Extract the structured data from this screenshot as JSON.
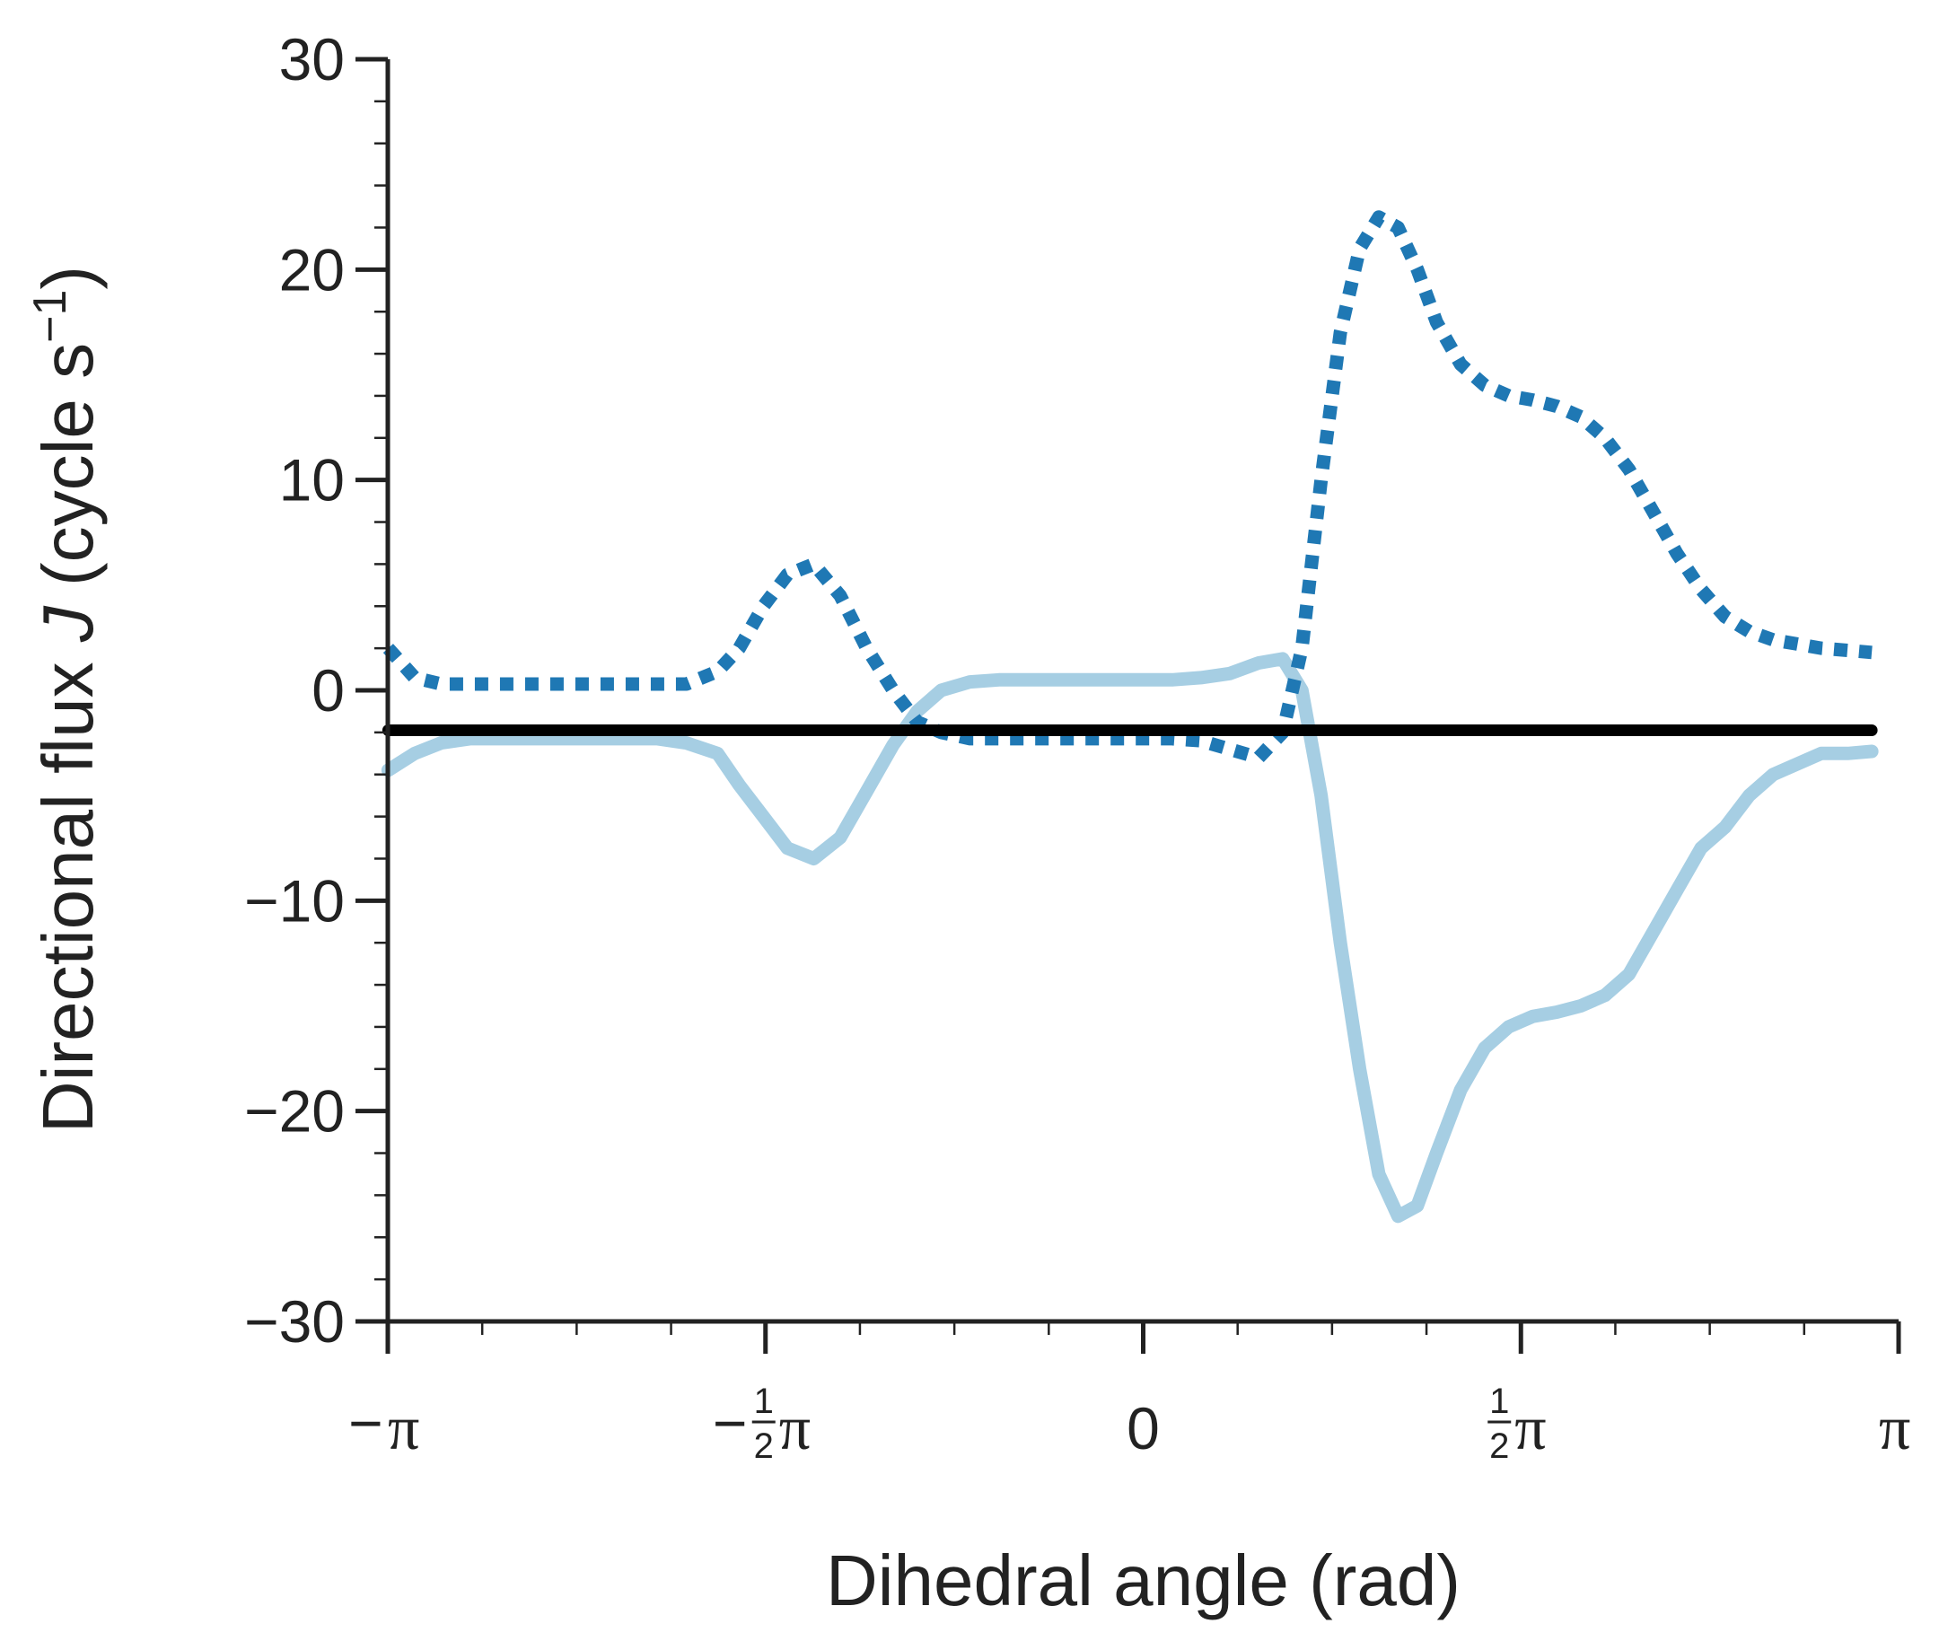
{
  "chart_data": {
    "type": "line",
    "xlabel": "Dihedral angle (rad)",
    "ylabel_parts": {
      "prefix": "Directional flux ",
      "symbol": "J",
      "middle": " (cycle s",
      "superscript": "−1",
      "suffix": ")"
    },
    "xlim": [
      -3.1416,
      3.1416
    ],
    "ylim": [
      -30,
      30
    ],
    "grid": false,
    "x_ticks": [
      {
        "value": -3.1416,
        "sign": "−",
        "frac_num": "",
        "frac_den": "",
        "symbol": "π"
      },
      {
        "value": -1.5708,
        "sign": "−",
        "frac_num": "1",
        "frac_den": "2",
        "symbol": "π"
      },
      {
        "value": 0,
        "sign": "",
        "frac_num": "",
        "frac_den": "",
        "symbol": "0"
      },
      {
        "value": 1.5708,
        "sign": "",
        "frac_num": "1",
        "frac_den": "2",
        "symbol": "π"
      },
      {
        "value": 3.1416,
        "sign": "",
        "frac_num": "",
        "frac_den": "",
        "symbol": "π"
      }
    ],
    "x_minor_step": 0.3927,
    "y_ticks": [
      {
        "value": 30,
        "label": "30"
      },
      {
        "value": 20,
        "label": "20"
      },
      {
        "value": 10,
        "label": "10"
      },
      {
        "value": 0,
        "label": "0"
      },
      {
        "value": -10,
        "label": "−10"
      },
      {
        "value": -20,
        "label": "−20"
      },
      {
        "value": -30,
        "label": "−30"
      }
    ],
    "y_minor_step": 2,
    "series": [
      {
        "style": "solid",
        "color": "#a6cee3",
        "x": [
          -3.14,
          -3.03,
          -2.92,
          -2.8,
          -2.67,
          -2.54,
          -2.41,
          -2.28,
          -2.15,
          -2.02,
          -1.9,
          -1.77,
          -1.68,
          -1.58,
          -1.48,
          -1.37,
          -1.26,
          -1.15,
          -1.04,
          -0.94,
          -0.84,
          -0.72,
          -0.6,
          -0.48,
          -0.36,
          -0.24,
          -0.12,
          0.0,
          0.12,
          0.24,
          0.36,
          0.48,
          0.58,
          0.66,
          0.74,
          0.82,
          0.9,
          0.98,
          1.06,
          1.14,
          1.22,
          1.32,
          1.42,
          1.52,
          1.62,
          1.72,
          1.82,
          1.92,
          2.02,
          2.12,
          2.22,
          2.32,
          2.42,
          2.52,
          2.62,
          2.72,
          2.82,
          2.93,
          3.03
        ],
        "y": [
          -3.8,
          -3.0,
          -2.5,
          -2.3,
          -2.3,
          -2.3,
          -2.3,
          -2.3,
          -2.3,
          -2.3,
          -2.5,
          -3.0,
          -4.5,
          -6.0,
          -7.5,
          -8.0,
          -7.0,
          -4.8,
          -2.6,
          -1.0,
          0.0,
          0.4,
          0.5,
          0.5,
          0.5,
          0.5,
          0.5,
          0.5,
          0.5,
          0.6,
          0.8,
          1.3,
          1.5,
          0.0,
          -5.0,
          -12.0,
          -18.0,
          -23.0,
          -25.0,
          -24.5,
          -22.0,
          -19.0,
          -17.0,
          -16.0,
          -15.5,
          -15.3,
          -15.0,
          -14.5,
          -13.5,
          -11.5,
          -9.5,
          -7.5,
          -6.5,
          -5.0,
          -4.0,
          -3.5,
          -3.0,
          -3.0,
          -2.9
        ],
        "name": ""
      },
      {
        "style": "dotted",
        "color": "#1f78b4",
        "x": [
          -3.14,
          -3.03,
          -2.92,
          -2.8,
          -2.67,
          -2.54,
          -2.41,
          -2.28,
          -2.15,
          -2.02,
          -1.9,
          -1.77,
          -1.68,
          -1.58,
          -1.48,
          -1.37,
          -1.26,
          -1.15,
          -1.04,
          -0.94,
          -0.84,
          -0.72,
          -0.6,
          -0.48,
          -0.36,
          -0.24,
          -0.12,
          0.0,
          0.12,
          0.24,
          0.36,
          0.48,
          0.58,
          0.66,
          0.74,
          0.82,
          0.9,
          0.98,
          1.06,
          1.14,
          1.22,
          1.32,
          1.42,
          1.52,
          1.62,
          1.72,
          1.82,
          1.92,
          2.02,
          2.12,
          2.22,
          2.32,
          2.42,
          2.52,
          2.62,
          2.72,
          2.82,
          2.93,
          3.03
        ],
        "y": [
          2.0,
          0.6,
          0.3,
          0.3,
          0.3,
          0.3,
          0.3,
          0.3,
          0.3,
          0.3,
          0.3,
          0.9,
          2.0,
          4.0,
          5.5,
          6.0,
          4.5,
          2.0,
          0.0,
          -1.5,
          -2.0,
          -2.3,
          -2.3,
          -2.3,
          -2.3,
          -2.3,
          -2.3,
          -2.3,
          -2.3,
          -2.4,
          -2.8,
          -3.2,
          -2.0,
          2.0,
          10.0,
          17.0,
          21.0,
          22.5,
          22.0,
          20.0,
          17.5,
          15.5,
          14.5,
          14.0,
          13.8,
          13.5,
          13.0,
          12.0,
          10.5,
          8.5,
          6.5,
          4.8,
          3.5,
          2.8,
          2.4,
          2.2,
          2.0,
          1.9,
          1.8
        ],
        "name": ""
      },
      {
        "style": "solid",
        "color": "#000000",
        "x": [
          -3.14,
          3.03
        ],
        "y": [
          -1.9,
          -1.9
        ],
        "name": ""
      }
    ]
  }
}
